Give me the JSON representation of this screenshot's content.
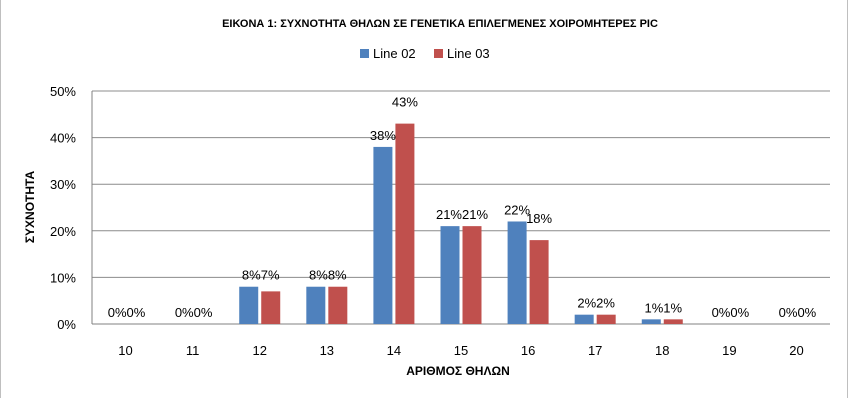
{
  "chart_data": {
    "type": "bar",
    "title": "ΕΙΚΟΝΑ 1: ΣΥΧΝΟΤΗΤΑ ΘΗΛΩΝ ΣΕ ΓΕΝΕΤΙΚΑ ΕΠΙΛΕΓΜΕΝΕΣ ΧΟΙΡΟΜΗΤΕΡΕΣ PIC",
    "xlabel": "ΑΡΙΘΜΟΣ ΘΗΛΩΝ",
    "ylabel": "ΣΥΧΝΟΤΗΤΑ",
    "categories": [
      "10",
      "11",
      "12",
      "13",
      "14",
      "15",
      "16",
      "17",
      "18",
      "19",
      "20"
    ],
    "series": [
      {
        "name": "Line 02",
        "color": "#4f81bd",
        "values": [
          0,
          0,
          8,
          8,
          38,
          21,
          22,
          2,
          1,
          0,
          0
        ]
      },
      {
        "name": "Line 03",
        "color": "#c0504d",
        "values": [
          0,
          0,
          7,
          8,
          43,
          21,
          18,
          2,
          1,
          0,
          0
        ]
      }
    ],
    "ylim": [
      0,
      50
    ],
    "yticks": [
      "0%",
      "10%",
      "20%",
      "30%",
      "40%",
      "50%"
    ],
    "grid": true,
    "legend": "top-center",
    "value_suffix": "%"
  }
}
